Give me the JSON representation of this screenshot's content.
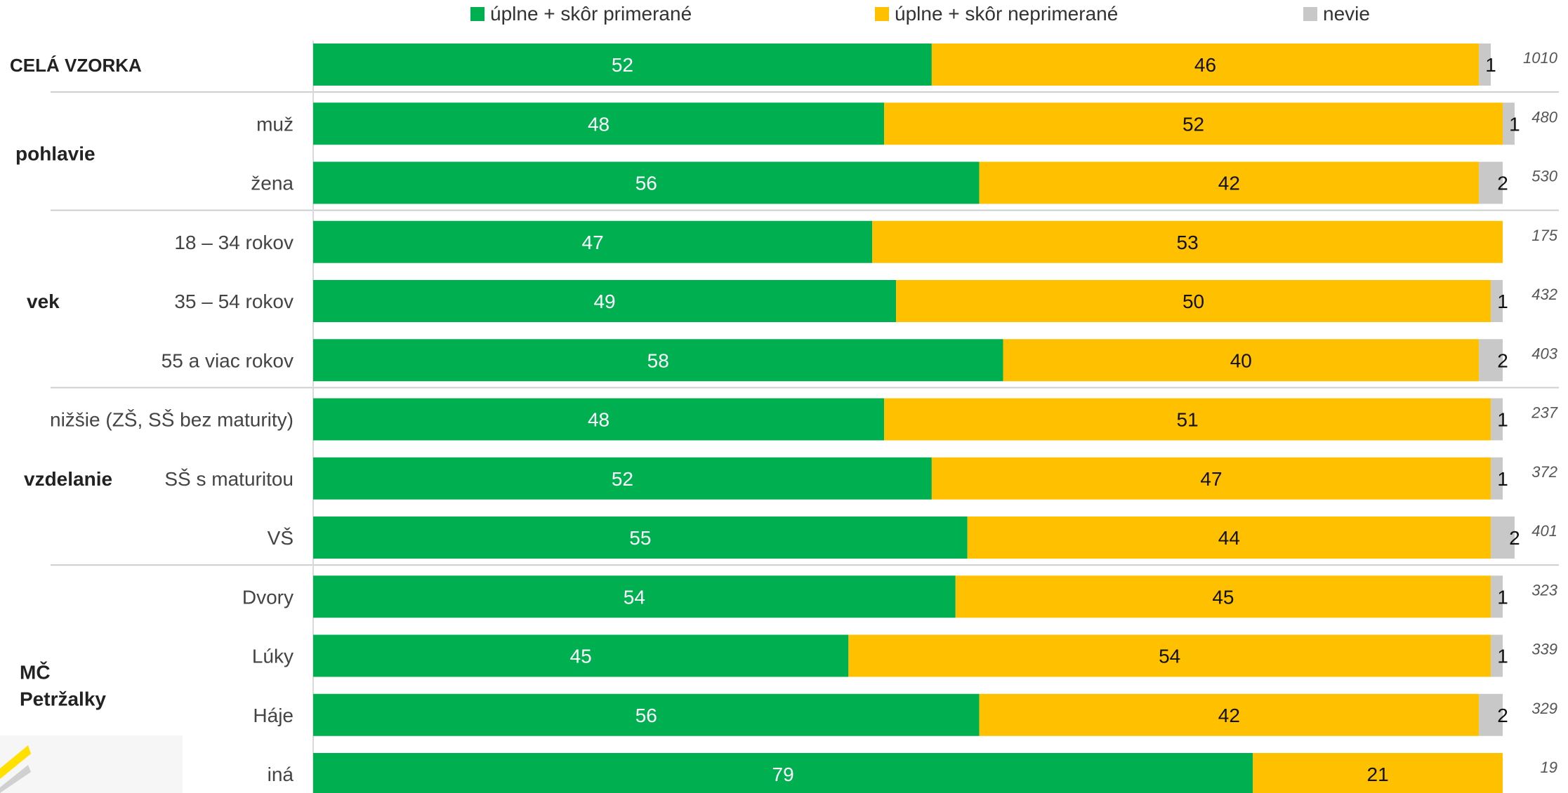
{
  "chart_data": {
    "type": "bar",
    "orientation": "horizontal",
    "stacked": true,
    "legend_position": "top",
    "grid": false,
    "xlim": [
      0,
      100
    ],
    "series": [
      {
        "name": "úplne + skôr primerané",
        "color": "#00B050"
      },
      {
        "name": "úplne + skôr neprimerané",
        "color": "#FFC000"
      },
      {
        "name": "nevie",
        "color": "#C8C8C8"
      }
    ],
    "rows": [
      {
        "group": "CELÁ VZORKA",
        "label": "",
        "values": [
          52,
          46,
          1
        ],
        "n": "1010"
      },
      {
        "group": "pohlavie",
        "label": "muž",
        "values": [
          48,
          52,
          1
        ],
        "n": "480"
      },
      {
        "group": "pohlavie",
        "label": "žena",
        "values": [
          56,
          42,
          2
        ],
        "n": "530"
      },
      {
        "group": "vek",
        "label": "18 – 34 rokov",
        "values": [
          47,
          53,
          null
        ],
        "n": "175"
      },
      {
        "group": "vek",
        "label": "35 – 54 rokov",
        "values": [
          49,
          50,
          1
        ],
        "n": "432"
      },
      {
        "group": "vek",
        "label": "55 a viac rokov",
        "values": [
          58,
          40,
          2
        ],
        "n": "403"
      },
      {
        "group": "vzdelanie",
        "label": "nižšie (ZŠ, SŠ bez maturity)",
        "values": [
          48,
          51,
          1
        ],
        "n": "237"
      },
      {
        "group": "vzdelanie",
        "label": "SŠ s maturitou",
        "values": [
          52,
          47,
          1
        ],
        "n": "372"
      },
      {
        "group": "vzdelanie",
        "label": "VŠ",
        "values": [
          55,
          44,
          2
        ],
        "n": "401"
      },
      {
        "group": "MČ Petržalky",
        "label": "Dvory",
        "values": [
          54,
          45,
          1
        ],
        "n": "323"
      },
      {
        "group": "MČ Petržalky",
        "label": "Lúky",
        "values": [
          45,
          54,
          1
        ],
        "n": "339"
      },
      {
        "group": "MČ Petržalky",
        "label": "Háje",
        "values": [
          56,
          42,
          2
        ],
        "n": "329"
      },
      {
        "group": "MČ Petržalky",
        "label": "iná",
        "values": [
          79,
          21,
          null
        ],
        "n": "19"
      }
    ],
    "groups": [
      {
        "name": "CELÁ VZORKA",
        "lines": [
          "CELÁ VZORKA"
        ]
      },
      {
        "name": "pohlavie",
        "lines": [
          "pohlavie"
        ]
      },
      {
        "name": "vek",
        "lines": [
          "vek"
        ]
      },
      {
        "name": "vzdelanie",
        "lines": [
          "vzdelanie"
        ]
      },
      {
        "name": "MČ Petržalky",
        "lines": [
          "MČ",
          "Petržalky"
        ]
      }
    ]
  }
}
